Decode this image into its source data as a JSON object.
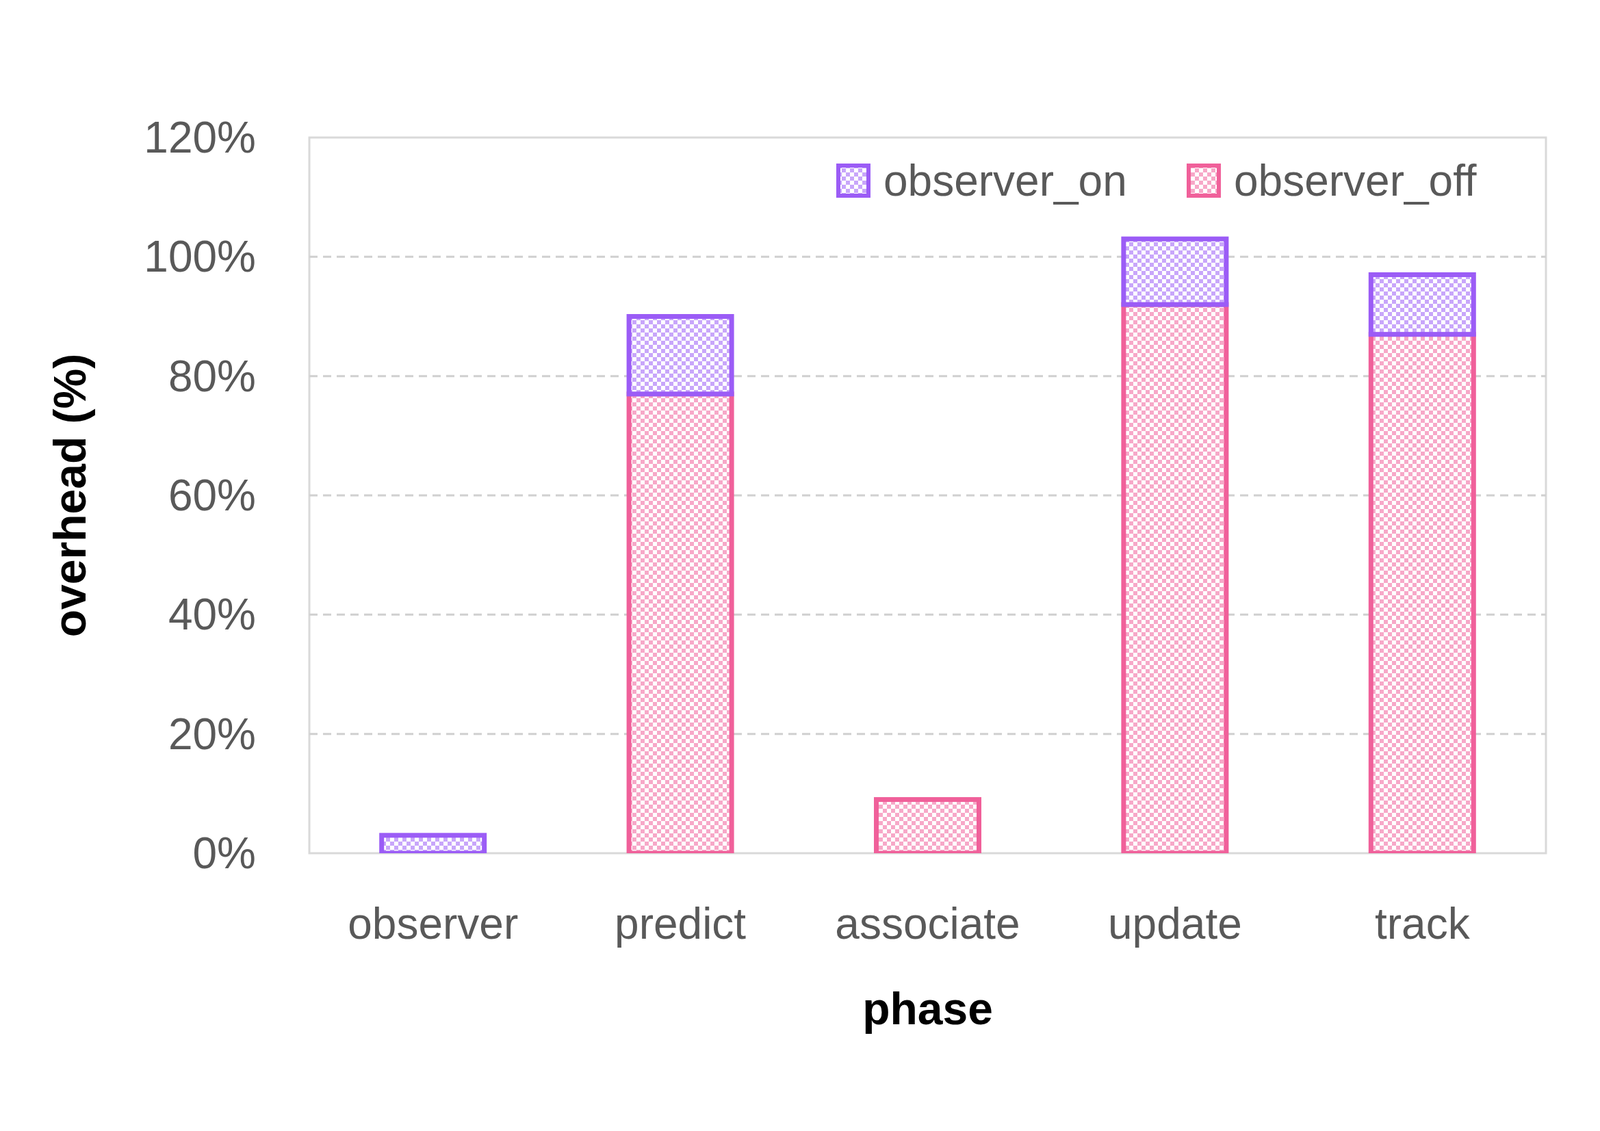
{
  "chart_data": {
    "type": "bar",
    "stacked": true,
    "grid": true,
    "legend": "top-right",
    "x_label": "phase",
    "y_label": "overhead (%)",
    "categories": [
      "observer",
      "predict",
      "associate",
      "update",
      "track"
    ],
    "series": [
      {
        "name": "observer_on",
        "color": "#9b5cf6",
        "values": [
          3,
          13,
          0,
          11,
          10
        ]
      },
      {
        "name": "observer_off",
        "color": "#f0609a",
        "values": [
          0,
          77,
          9,
          92,
          87
        ]
      }
    ],
    "ylim": [
      0,
      120
    ],
    "yticks": [
      {
        "value": 0,
        "label": "0%"
      },
      {
        "value": 20,
        "label": "20%"
      },
      {
        "value": 40,
        "label": "40%"
      },
      {
        "value": 60,
        "label": "60%"
      },
      {
        "value": 80,
        "label": "80%"
      },
      {
        "value": 100,
        "label": "100%"
      },
      {
        "value": 120,
        "label": "120%"
      }
    ]
  }
}
